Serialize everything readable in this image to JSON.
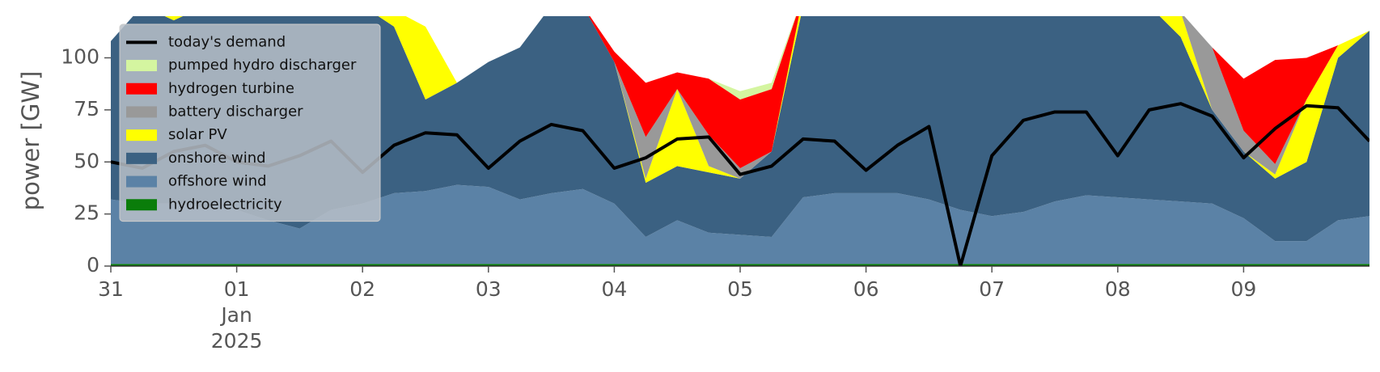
{
  "chart_data": {
    "type": "stacked_area",
    "ylabel": "power [GW]",
    "xlim": [
      0,
      10
    ],
    "ylim": [
      0,
      120
    ],
    "xticks": [
      {
        "value": 0,
        "label": "31"
      },
      {
        "value": 1,
        "label": "01\nJan\n2025"
      },
      {
        "value": 2,
        "label": "02"
      },
      {
        "value": 3,
        "label": "03"
      },
      {
        "value": 4,
        "label": "04"
      },
      {
        "value": 5,
        "label": "05"
      },
      {
        "value": 6,
        "label": "06"
      },
      {
        "value": 7,
        "label": "07"
      },
      {
        "value": 8,
        "label": "08"
      },
      {
        "value": 9,
        "label": "09"
      }
    ],
    "yticks": [
      0,
      25,
      50,
      75,
      100
    ],
    "legend": "upper left",
    "x": [
      0,
      0.25,
      0.5,
      0.75,
      1,
      1.25,
      1.5,
      1.75,
      2,
      2.25,
      2.5,
      2.75,
      3,
      3.25,
      3.5,
      3.75,
      4,
      4.25,
      4.5,
      4.75,
      5,
      5.25,
      5.5,
      5.75,
      6,
      6.25,
      6.5,
      6.75,
      7,
      7.25,
      7.5,
      7.75,
      8,
      8.25,
      8.5,
      8.75,
      9,
      9.25,
      9.5,
      9.75,
      10
    ],
    "series": [
      {
        "name": "hydroelectricity",
        "color": "#0a7d0a",
        "values": [
          1,
          1,
          1,
          1,
          1,
          1,
          1,
          1,
          1,
          1,
          1,
          1,
          1,
          1,
          1,
          1,
          1,
          1,
          1,
          1,
          1,
          1,
          1,
          1,
          1,
          1,
          1,
          1,
          1,
          1,
          1,
          1,
          1,
          1,
          1,
          1,
          1,
          1,
          1,
          1,
          1
        ]
      },
      {
        "name": "offshore wind",
        "color": "#5b82a6",
        "values": [
          31,
          29,
          29,
          27,
          26,
          21,
          17,
          26,
          29,
          34,
          35,
          38,
          37,
          31,
          34,
          36,
          29,
          13,
          21,
          15,
          14,
          13,
          32,
          34,
          34,
          34,
          31,
          26,
          23,
          25,
          30,
          33,
          32,
          31,
          30,
          29,
          22,
          11,
          11,
          21,
          23
        ]
      },
      {
        "name": "onshore wind",
        "color": "#3b6182",
        "values": [
          76,
          95,
          88,
          97,
          98,
          103,
          107,
          98,
          95,
          80,
          44,
          49,
          60,
          73,
          90,
          88,
          68,
          26,
          26,
          29,
          27,
          41,
          92,
          90,
          90,
          90,
          93,
          98,
          101,
          99,
          94,
          91,
          92,
          93,
          79,
          45,
          32,
          30,
          38,
          78,
          89
        ]
      },
      {
        "name": "solar PV",
        "color": "#ffff00",
        "values": [
          0,
          0,
          10,
          0,
          0,
          0,
          0,
          0,
          0,
          8,
          35,
          0,
          0,
          0,
          0,
          0,
          0,
          2,
          37,
          3,
          0,
          0,
          5,
          0,
          0,
          0,
          0,
          0,
          0,
          0,
          0,
          0,
          0,
          0,
          12,
          0,
          0,
          2,
          30,
          6,
          0
        ]
      },
      {
        "name": "battery discharger",
        "color": "#999999",
        "values": [
          0,
          0,
          0,
          0,
          0,
          0,
          0,
          0,
          0,
          0,
          0,
          0,
          0,
          0,
          0,
          0,
          0,
          20,
          0,
          15,
          5,
          0,
          0,
          0,
          0,
          0,
          0,
          0,
          0,
          0,
          0,
          0,
          0,
          0,
          0,
          30,
          10,
          5,
          0,
          0,
          0
        ]
      },
      {
        "name": "hydrogen turbine",
        "color": "#ff0000",
        "values": [
          0,
          0,
          0,
          0,
          0,
          0,
          0,
          0,
          0,
          0,
          0,
          0,
          0,
          0,
          0,
          0,
          5,
          26,
          8,
          27,
          33,
          30,
          0,
          0,
          0,
          0,
          0,
          0,
          0,
          0,
          0,
          0,
          0,
          0,
          0,
          0,
          25,
          50,
          20,
          0,
          0
        ]
      },
      {
        "name": "pumped hydro discharger",
        "color": "#d4f5a0",
        "values": [
          0,
          0,
          0,
          0,
          0,
          0,
          0,
          0,
          0,
          0,
          0,
          0,
          0,
          0,
          0,
          0,
          0,
          0,
          0,
          0,
          4,
          3,
          0,
          0,
          0,
          0,
          0,
          0,
          0,
          0,
          0,
          0,
          0,
          0,
          0,
          0,
          0,
          0,
          0,
          0,
          0
        ]
      },
      {
        "name": "today's demand",
        "color": "#000000",
        "type": "line",
        "values": [
          50,
          47,
          55,
          58,
          50,
          48,
          53,
          60,
          45,
          58,
          64,
          63,
          47,
          60,
          68,
          65,
          47,
          52,
          61,
          62,
          44,
          48,
          61,
          60,
          46,
          58,
          67,
          0,
          53,
          70,
          74,
          74,
          53,
          75,
          78,
          72,
          52,
          66,
          77,
          76,
          60
        ]
      }
    ]
  }
}
